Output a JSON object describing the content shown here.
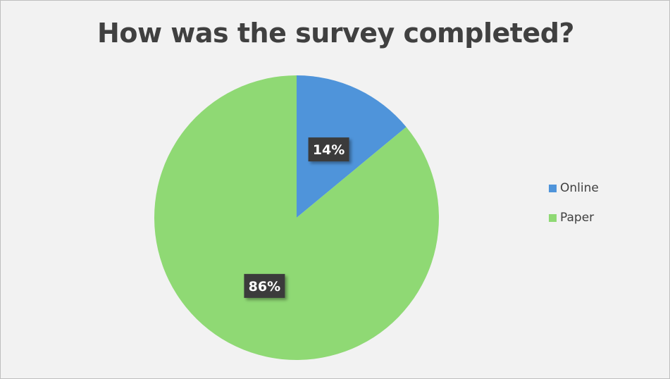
{
  "chart_data": {
    "type": "pie",
    "title": "How was the survey completed?",
    "categories": [
      "Online",
      "Paper"
    ],
    "values": [
      14,
      86
    ],
    "data_labels": [
      "14%",
      "86%"
    ],
    "colors": [
      "#4f94da",
      "#8fd974"
    ],
    "legend_position": "right"
  }
}
